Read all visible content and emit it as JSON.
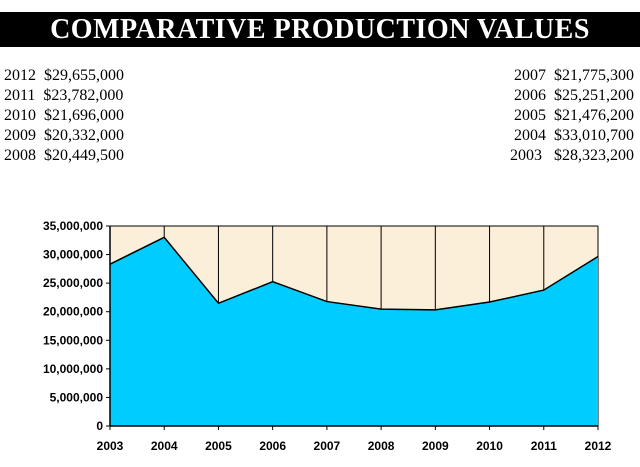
{
  "page_title": "COMPARATIVE PRODUCTION VALUES",
  "values_left": [
    {
      "year": "2012",
      "value": "$29,655,000"
    },
    {
      "year": "2011",
      "value": "$23,782,000"
    },
    {
      "year": "2010",
      "value": "$21,696,000"
    },
    {
      "year": "2009",
      "value": "$20,332,000"
    },
    {
      "year": "2008",
      "value": "$20,449,500"
    }
  ],
  "values_right": [
    {
      "year": "2007",
      "value": "$21,775,300"
    },
    {
      "year": "2006",
      "value": "$25,251,200"
    },
    {
      "year": "2005",
      "value": "$21,476,200"
    },
    {
      "year": "2004",
      "value": "$33,010,700"
    },
    {
      "year": "2003",
      "value": " $28,323,200"
    }
  ],
  "chart_data": {
    "type": "area",
    "title": "",
    "xlabel": "",
    "ylabel": "",
    "x": [
      "2003",
      "2004",
      "2005",
      "2006",
      "2007",
      "2008",
      "2009",
      "2010",
      "2011",
      "2012"
    ],
    "series": [
      {
        "values": [
          28323200,
          33010700,
          21476200,
          25251200,
          21775300,
          20449500,
          20332000,
          21696000,
          23782000,
          29655000
        ]
      }
    ],
    "ylim": [
      0,
      35000000
    ],
    "yticks": [
      0,
      5000000,
      10000000,
      15000000,
      20000000,
      25000000,
      30000000,
      35000000
    ],
    "ytick_labels": [
      "0",
      "5,000,000",
      "10,000,000",
      "15,000,000",
      "20,000,000",
      "25,000,000",
      "30,000,000",
      "35,000,000"
    ],
    "grid": "vertical",
    "legend": "none",
    "colors": {
      "area": "#00CCFF",
      "plot_background": "#FBEFD9",
      "line": "#000000"
    }
  }
}
